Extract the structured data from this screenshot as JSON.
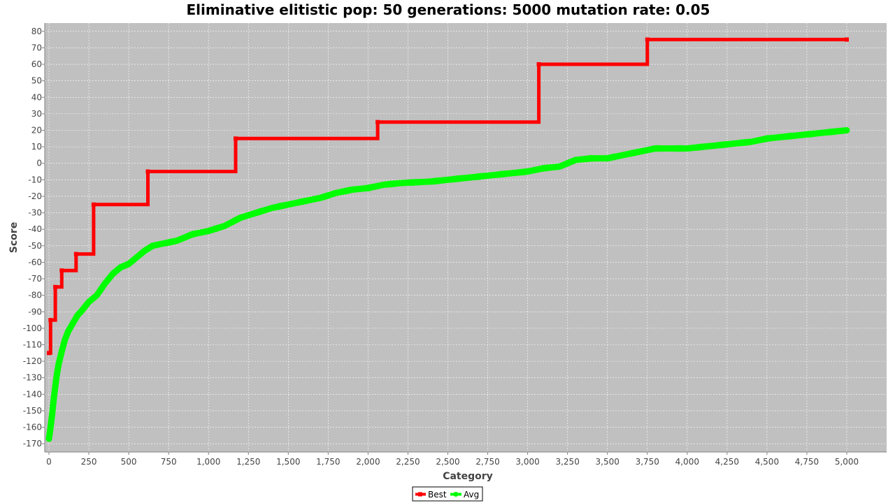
{
  "chart_data": {
    "type": "line",
    "title": "Eliminative elitistic pop: 50 generations: 5000 mutation rate: 0.05",
    "xlabel": "Category",
    "ylabel": "Score",
    "xlim": [
      0,
      5000
    ],
    "ylim": [
      -175,
      85
    ],
    "x_ticks": [
      0,
      250,
      500,
      750,
      1000,
      1250,
      1500,
      1750,
      2000,
      2250,
      2500,
      2750,
      3000,
      3250,
      3500,
      3750,
      4000,
      4250,
      4500,
      4750,
      5000
    ],
    "x_tick_labels": [
      "0",
      "250",
      "500",
      "750",
      "1,000",
      "1,250",
      "1,500",
      "1,750",
      "2,000",
      "2,250",
      "2,500",
      "2,750",
      "3,000",
      "3,250",
      "3,500",
      "3,750",
      "4,000",
      "4,250",
      "4,500",
      "4,750",
      "5,000"
    ],
    "y_ticks": [
      -170,
      -160,
      -150,
      -140,
      -130,
      -120,
      -110,
      -100,
      -90,
      -80,
      -70,
      -60,
      -50,
      -40,
      -30,
      -20,
      -10,
      0,
      10,
      20,
      30,
      40,
      50,
      60,
      70,
      80
    ],
    "grid": true,
    "legend_position": "bottom-center",
    "series": [
      {
        "name": "Best",
        "color": "#ff0000",
        "style": "step",
        "x": [
          0,
          10,
          40,
          80,
          170,
          280,
          620,
          1170,
          2060,
          3070,
          3750,
          5000
        ],
        "values": [
          -115,
          -95,
          -75,
          -65,
          -55,
          -25,
          -5,
          15,
          25,
          60,
          75,
          75
        ]
      },
      {
        "name": "Avg",
        "color": "#00ff00",
        "style": "line",
        "x": [
          0,
          10,
          20,
          30,
          40,
          50,
          60,
          80,
          100,
          120,
          150,
          180,
          200,
          250,
          300,
          350,
          400,
          450,
          500,
          550,
          600,
          650,
          700,
          800,
          900,
          1000,
          1100,
          1200,
          1300,
          1400,
          1500,
          1600,
          1700,
          1800,
          1900,
          2000,
          2100,
          2200,
          2400,
          2600,
          2800,
          3000,
          3100,
          3200,
          3300,
          3400,
          3500,
          3600,
          3700,
          3800,
          3900,
          4000,
          4100,
          4200,
          4300,
          4400,
          4500,
          4600,
          4700,
          4800,
          4900,
          5000
        ],
        "values": [
          -167,
          -160,
          -152,
          -143,
          -135,
          -128,
          -122,
          -114,
          -107,
          -102,
          -97,
          -92,
          -90,
          -84,
          -80,
          -73,
          -67,
          -63,
          -61,
          -57,
          -53,
          -50,
          -49,
          -47,
          -43,
          -41,
          -38,
          -33,
          -30,
          -27,
          -25,
          -23,
          -21,
          -18,
          -16,
          -15,
          -13,
          -12,
          -11,
          -9,
          -7,
          -5,
          -3,
          -2,
          2,
          3,
          3,
          5,
          7,
          9,
          9,
          9,
          10,
          11,
          12,
          13,
          15,
          16,
          17,
          18,
          19,
          20
        ]
      }
    ]
  }
}
